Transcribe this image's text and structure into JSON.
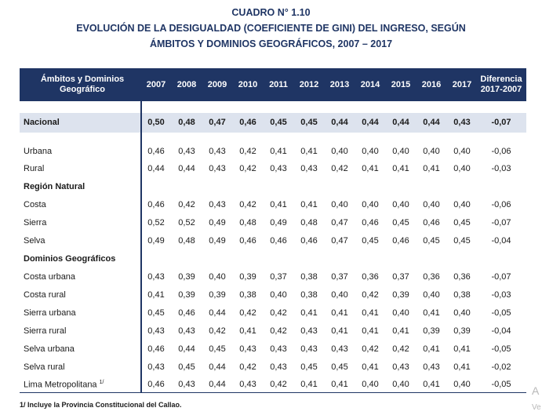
{
  "title": {
    "line1": "CUADRO N° 1.10",
    "line2": "EVOLUCIÓN DE LA DESIGUALDAD (COEFICIENTE DE GINI) DEL INGRESO, SEGÚN",
    "line3": "ÁMBITOS Y DOMINIOS GEOGRÁFICOS, 2007 – 2017"
  },
  "header": {
    "label_line1": "Ámbitos y Dominios",
    "label_line2": "Geográfico",
    "years": [
      "2007",
      "2008",
      "2009",
      "2010",
      "2011",
      "2012",
      "2013",
      "2014",
      "2015",
      "2016",
      "2017"
    ],
    "diff_line1": "Diferencia",
    "diff_line2": "2017-2007"
  },
  "nacional": {
    "label": "Nacional",
    "values": [
      "0,50",
      "0,48",
      "0,47",
      "0,46",
      "0,45",
      "0,45",
      "0,44",
      "0,44",
      "0,44",
      "0,44",
      "0,43"
    ],
    "diff": "-0,07"
  },
  "rows": {
    "urbana": {
      "label": "Urbana",
      "values": [
        "0,46",
        "0,43",
        "0,43",
        "0,42",
        "0,41",
        "0,41",
        "0,40",
        "0,40",
        "0,40",
        "0,40",
        "0,40"
      ],
      "diff": "-0,06"
    },
    "rural": {
      "label": "Rural",
      "values": [
        "0,44",
        "0,44",
        "0,43",
        "0,42",
        "0,43",
        "0,43",
        "0,42",
        "0,41",
        "0,41",
        "0,41",
        "0,40"
      ],
      "diff": "-0,03"
    },
    "region_natural": {
      "label": "Región Natural"
    },
    "costa": {
      "label": "Costa",
      "values": [
        "0,46",
        "0,42",
        "0,43",
        "0,42",
        "0,41",
        "0,41",
        "0,40",
        "0,40",
        "0,40",
        "0,40",
        "0,40"
      ],
      "diff": "-0,06"
    },
    "sierra": {
      "label": "Sierra",
      "values": [
        "0,52",
        "0,52",
        "0,49",
        "0,48",
        "0,49",
        "0,48",
        "0,47",
        "0,46",
        "0,45",
        "0,46",
        "0,45"
      ],
      "diff": "-0,07"
    },
    "selva": {
      "label": "Selva",
      "values": [
        "0,49",
        "0,48",
        "0,49",
        "0,46",
        "0,46",
        "0,46",
        "0,47",
        "0,45",
        "0,46",
        "0,45",
        "0,45"
      ],
      "diff": "-0,04"
    },
    "dominios": {
      "label": "Dominios Geográficos"
    },
    "costa_urbana": {
      "label": "Costa urbana",
      "values": [
        "0,43",
        "0,39",
        "0,40",
        "0,39",
        "0,37",
        "0,38",
        "0,37",
        "0,36",
        "0,37",
        "0,36",
        "0,36"
      ],
      "diff": "-0,07"
    },
    "costa_rural": {
      "label": "Costa rural",
      "values": [
        "0,41",
        "0,39",
        "0,39",
        "0,38",
        "0,40",
        "0,38",
        "0,40",
        "0,42",
        "0,39",
        "0,40",
        "0,38"
      ],
      "diff": "-0,03"
    },
    "sierra_urbana": {
      "label": "Sierra urbana",
      "values": [
        "0,45",
        "0,46",
        "0,44",
        "0,42",
        "0,42",
        "0,41",
        "0,41",
        "0,41",
        "0,40",
        "0,41",
        "0,40"
      ],
      "diff": "-0,05"
    },
    "sierra_rural": {
      "label": "Sierra rural",
      "values": [
        "0,43",
        "0,43",
        "0,42",
        "0,41",
        "0,42",
        "0,43",
        "0,41",
        "0,41",
        "0,41",
        "0,39",
        "0,39"
      ],
      "diff": "-0,04"
    },
    "selva_urbana": {
      "label": "Selva urbana",
      "values": [
        "0,46",
        "0,44",
        "0,45",
        "0,43",
        "0,43",
        "0,43",
        "0,43",
        "0,42",
        "0,42",
        "0,41",
        "0,41"
      ],
      "diff": "-0,05"
    },
    "selva_rural": {
      "label": "Selva rural",
      "values": [
        "0,43",
        "0,45",
        "0,44",
        "0,42",
        "0,43",
        "0,45",
        "0,45",
        "0,41",
        "0,43",
        "0,43",
        "0,41"
      ],
      "diff": "-0,02"
    },
    "lima": {
      "label": "Lima Metropolitana",
      "sup": "1/",
      "values": [
        "0,46",
        "0,43",
        "0,44",
        "0,43",
        "0,42",
        "0,41",
        "0,41",
        "0,40",
        "0,40",
        "0,41",
        "0,40"
      ],
      "diff": "-0,05"
    }
  },
  "footnote": "1/ Incluye la Provincia Constitucional del Callao.",
  "edge_text": {
    "a": "A",
    "b": "Ve"
  },
  "colors": {
    "header_bg": "#1f3564",
    "band_bg": "#dde3ee"
  }
}
